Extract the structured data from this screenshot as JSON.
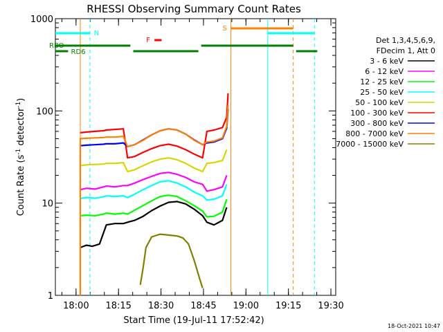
{
  "chart_data": {
    "type": "line",
    "title": "RHESSI Observing Summary Count Rates",
    "xlabel": "Start Time (19-Jul-11 17:52:42)",
    "ylabel_main": "Count Rate (s",
    "ylabel_sup1": "-1",
    "ylabel_mid": " detector",
    "ylabel_sup2": "-1",
    "ylabel_end": ")",
    "yscale": "log",
    "ylim": [
      1,
      1000
    ],
    "xlim_minutes": [
      0,
      99
    ],
    "x_tick_labels": [
      {
        "label": "18:00",
        "minutes": 7.3
      },
      {
        "label": "18:15",
        "minutes": 22.3
      },
      {
        "label": "18:30",
        "minutes": 37.3
      },
      {
        "label": "18:45",
        "minutes": 52.3
      },
      {
        "label": "19:00",
        "minutes": 67.3
      },
      {
        "label": "19:15",
        "minutes": 82.3
      },
      {
        "label": "19:30",
        "minutes": 97.3
      }
    ],
    "y_tick_labels": [
      {
        "label": "1",
        "value": 1
      },
      {
        "label": "10",
        "value": 10
      },
      {
        "label": "100",
        "value": 100
      },
      {
        "label": "1000",
        "value": 1000
      }
    ],
    "legend_header": [
      "Det 1,3,4,5,6,9,",
      "FDecim 1, Att 0"
    ],
    "series": [
      {
        "name": "3 - 6 keV",
        "color": "#000000",
        "values": [
          [
            8.8,
            3.3
          ],
          [
            11,
            3.5
          ],
          [
            13,
            3.4
          ],
          [
            15.6,
            3.6
          ],
          [
            18,
            5.8
          ],
          [
            21,
            6.0
          ],
          [
            24,
            6.0
          ],
          [
            25.5,
            6.2
          ],
          [
            28,
            6.5
          ],
          [
            31,
            7.2
          ],
          [
            34,
            8.3
          ],
          [
            37,
            9.3
          ],
          [
            40,
            10.2
          ],
          [
            43,
            10.4
          ],
          [
            46,
            9.8
          ],
          [
            49,
            8.6
          ],
          [
            52,
            7.3
          ],
          [
            53.5,
            6.2
          ],
          [
            56,
            5.8
          ],
          [
            59,
            6.5
          ],
          [
            60.5,
            9.0
          ]
        ]
      },
      {
        "name": "6 - 12 keV",
        "color": "#ff00ff",
        "values": [
          [
            8.8,
            14
          ],
          [
            11,
            14.5
          ],
          [
            14,
            14.2
          ],
          [
            17,
            15
          ],
          [
            18,
            15.3
          ],
          [
            21,
            15
          ],
          [
            24,
            15.5
          ],
          [
            25.5,
            15.5
          ],
          [
            28,
            16.5
          ],
          [
            31,
            18
          ],
          [
            34,
            19.5
          ],
          [
            37,
            21
          ],
          [
            40,
            21.5
          ],
          [
            43,
            20.5
          ],
          [
            46,
            19
          ],
          [
            49,
            17
          ],
          [
            52,
            16
          ],
          [
            53.5,
            13.5
          ],
          [
            56,
            14
          ],
          [
            59,
            15
          ],
          [
            60.5,
            20
          ]
        ]
      },
      {
        "name": "12 - 25 keV",
        "color": "#00ff00",
        "values": [
          [
            8.8,
            7.3
          ],
          [
            11,
            7.4
          ],
          [
            14,
            7.3
          ],
          [
            17,
            7.6
          ],
          [
            18,
            7.8
          ],
          [
            21,
            7.6
          ],
          [
            24,
            7.8
          ],
          [
            25.5,
            7.6
          ],
          [
            28,
            8.4
          ],
          [
            31,
            9.4
          ],
          [
            34,
            10.6
          ],
          [
            37,
            11.8
          ],
          [
            40,
            12.2
          ],
          [
            43,
            11.8
          ],
          [
            46,
            10.6
          ],
          [
            49,
            9.4
          ],
          [
            52,
            8.2
          ],
          [
            53.5,
            7.1
          ],
          [
            56,
            7.2
          ],
          [
            59,
            8.0
          ],
          [
            60.5,
            11
          ]
        ]
      },
      {
        "name": "25 - 50 keV",
        "color": "#00ffff",
        "values": [
          [
            8.8,
            11.2
          ],
          [
            11,
            11.5
          ],
          [
            14,
            11.3
          ],
          [
            17,
            11.7
          ],
          [
            18,
            12
          ],
          [
            21,
            11.8
          ],
          [
            24,
            12
          ],
          [
            25.5,
            11.5
          ],
          [
            28,
            12.5
          ],
          [
            31,
            14
          ],
          [
            34,
            15.5
          ],
          [
            37,
            17
          ],
          [
            40,
            17.5
          ],
          [
            43,
            16.5
          ],
          [
            46,
            15
          ],
          [
            49,
            13.2
          ],
          [
            52,
            12
          ],
          [
            53.5,
            10.8
          ],
          [
            56,
            11
          ],
          [
            59,
            12
          ],
          [
            60.5,
            16
          ]
        ]
      },
      {
        "name": "50 - 100 keV",
        "color": "#d7d700",
        "values": [
          [
            8.8,
            25.5
          ],
          [
            11,
            26
          ],
          [
            14,
            26.3
          ],
          [
            17,
            26.5
          ],
          [
            18,
            27
          ],
          [
            21,
            27
          ],
          [
            24,
            27.5
          ],
          [
            25.5,
            22
          ],
          [
            28,
            23
          ],
          [
            31,
            25.5
          ],
          [
            34,
            28
          ],
          [
            37,
            30
          ],
          [
            40,
            31
          ],
          [
            43,
            29.5
          ],
          [
            46,
            27
          ],
          [
            49,
            24
          ],
          [
            52,
            22
          ],
          [
            53.5,
            27
          ],
          [
            56,
            27.5
          ],
          [
            59,
            29
          ],
          [
            60.5,
            38
          ]
        ]
      },
      {
        "name": "100 - 300 keV",
        "color": "#ff0000",
        "values": [
          [
            8.8,
            58
          ],
          [
            11,
            59
          ],
          [
            14,
            60
          ],
          [
            17,
            61
          ],
          [
            18,
            62
          ],
          [
            21,
            63
          ],
          [
            24,
            64
          ],
          [
            25.5,
            31
          ],
          [
            28,
            32
          ],
          [
            31,
            35.5
          ],
          [
            34,
            39
          ],
          [
            37,
            42
          ],
          [
            40,
            43.5
          ],
          [
            43,
            41.5
          ],
          [
            46,
            38
          ],
          [
            49,
            34
          ],
          [
            52,
            31
          ],
          [
            53.5,
            60
          ],
          [
            56,
            62
          ],
          [
            59,
            66
          ],
          [
            60.5,
            85
          ],
          [
            61,
            155
          ]
        ]
      },
      {
        "name": "300 - 800 keV",
        "color": "#0000ff",
        "values": [
          [
            8.8,
            42
          ],
          [
            11,
            42.5
          ],
          [
            14,
            43
          ],
          [
            17,
            43.5
          ],
          [
            18,
            44
          ],
          [
            21,
            44
          ],
          [
            24,
            45
          ],
          [
            25.5,
            41
          ],
          [
            28,
            43
          ],
          [
            31,
            48.5
          ],
          [
            34,
            55
          ],
          [
            37,
            61
          ],
          [
            40,
            64
          ],
          [
            43,
            62
          ],
          [
            46,
            56
          ],
          [
            49,
            48.5
          ],
          [
            52,
            43
          ],
          [
            53.5,
            45
          ],
          [
            56,
            46
          ],
          [
            59,
            50
          ],
          [
            60.5,
            65
          ],
          [
            61,
            105
          ]
        ]
      },
      {
        "name": "800 - 7000 keV",
        "color": "#ff8000",
        "values": [
          [
            8.8,
            1
          ],
          [
            8.8,
            50
          ],
          [
            11,
            50.5
          ],
          [
            14,
            51
          ],
          [
            17,
            51.5
          ],
          [
            18,
            52
          ],
          [
            21,
            52
          ],
          [
            24,
            53
          ],
          [
            25.5,
            41
          ],
          [
            28,
            43
          ],
          [
            31,
            48
          ],
          [
            34,
            55
          ],
          [
            37,
            61
          ],
          [
            40,
            64
          ],
          [
            43,
            62
          ],
          [
            46,
            56
          ],
          [
            49,
            48
          ],
          [
            52,
            43
          ],
          [
            53.5,
            46
          ],
          [
            56,
            47
          ],
          [
            59,
            51
          ],
          [
            60.5,
            68
          ],
          [
            61,
            115
          ]
        ]
      },
      {
        "name": "7000 - 15000 keV",
        "color": "#808000",
        "values": [
          [
            30,
            1.3
          ],
          [
            31,
            2.0
          ],
          [
            32,
            3.3
          ],
          [
            34,
            4.3
          ],
          [
            37,
            4.6
          ],
          [
            40,
            4.5
          ],
          [
            43,
            4.4
          ],
          [
            45,
            4.2
          ],
          [
            47,
            3.6
          ],
          [
            49,
            2.4
          ],
          [
            51,
            1.5
          ],
          [
            52,
            1.2
          ]
        ]
      }
    ],
    "annotations": {
      "N": {
        "label": "N",
        "color": "#00ffff"
      },
      "F": {
        "label": "F",
        "color": "#ff0000"
      },
      "S": {
        "label": "S",
        "color": "#ff8000"
      },
      "RBO": {
        "label": "RBO",
        "color": "#008000"
      },
      "RD6": {
        "label": "RD6",
        "color": "#008000"
      }
    },
    "date_stamp": "18-Oct-2021 10:47"
  }
}
